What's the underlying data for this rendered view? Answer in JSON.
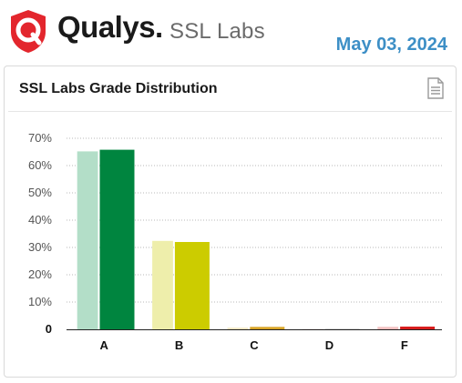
{
  "header": {
    "brand": "Qualys.",
    "brand_suffix": "SSL Labs",
    "date": "May 03, 2024"
  },
  "card": {
    "title": "SSL Labs Grade Distribution",
    "export_icon": "document-icon"
  },
  "colors": {
    "brand_red": "#e3262d",
    "date_blue": "#3d8fc6",
    "grade_a_light": "#b3dec8",
    "grade_a": "#00853f",
    "grade_b_light": "#eeeeab",
    "grade_b": "#cccc00",
    "grade_c_light": "#f1e7c2",
    "grade_c": "#d9a528",
    "grade_d_light": "#f0d8d8",
    "grade_d": "#b8b8b8",
    "grade_f_light": "#f2c0c0",
    "grade_f": "#d91e1e"
  },
  "chart_data": {
    "type": "bar",
    "categories": [
      "A",
      "B",
      "C",
      "D",
      "F"
    ],
    "series": [
      {
        "values": [
          65.2,
          32.4,
          0.6,
          0.1,
          0.9
        ]
      },
      {
        "values": [
          65.8,
          32.0,
          0.9,
          0.1,
          1.0
        ]
      }
    ],
    "yticks": [
      "0",
      "10%",
      "20%",
      "30%",
      "40%",
      "50%",
      "60%",
      "70%"
    ],
    "ylim": [
      0,
      70
    ],
    "grid": true,
    "title": "",
    "xlabel": "",
    "ylabel": ""
  }
}
